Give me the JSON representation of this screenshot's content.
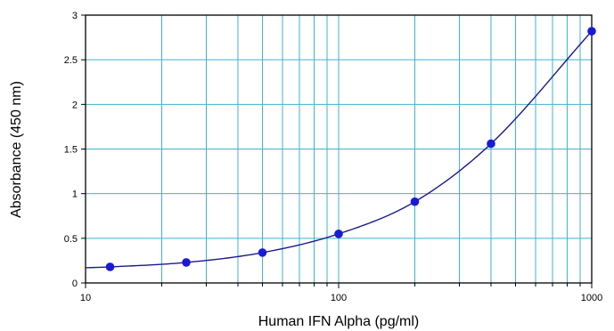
{
  "chart_data": {
    "type": "scatter",
    "title": "",
    "xlabel": "Human IFN Alpha (pg/ml)",
    "ylabel": "Absorbance (450 nm)",
    "xscale": "log",
    "xlim": [
      10,
      1000
    ],
    "ylim": [
      0,
      3
    ],
    "x_ticks": [
      10,
      100,
      1000
    ],
    "x_tick_labels": [
      "10",
      "100",
      "1000"
    ],
    "y_ticks": [
      0,
      0.5,
      1,
      1.5,
      2,
      2.5,
      3
    ],
    "y_tick_labels": [
      "0",
      "0.5",
      "1",
      "1.5",
      "2",
      "2.5",
      "3"
    ],
    "grid": true,
    "legend": "none",
    "points": {
      "x": [
        12.5,
        25,
        50,
        100,
        200,
        400,
        1000
      ],
      "y": [
        0.18,
        0.23,
        0.34,
        0.55,
        0.91,
        1.56,
        2.82
      ]
    },
    "fit_curve": {
      "x": [
        10,
        12.5,
        25,
        50,
        100,
        200,
        400,
        1000
      ],
      "y": [
        0.17,
        0.18,
        0.23,
        0.34,
        0.55,
        0.91,
        1.56,
        2.82
      ]
    },
    "colors": {
      "grid": "#3fb3cc",
      "points": "#1a1ad6",
      "curve": "#1a1a8c",
      "axis": "#000000"
    }
  }
}
